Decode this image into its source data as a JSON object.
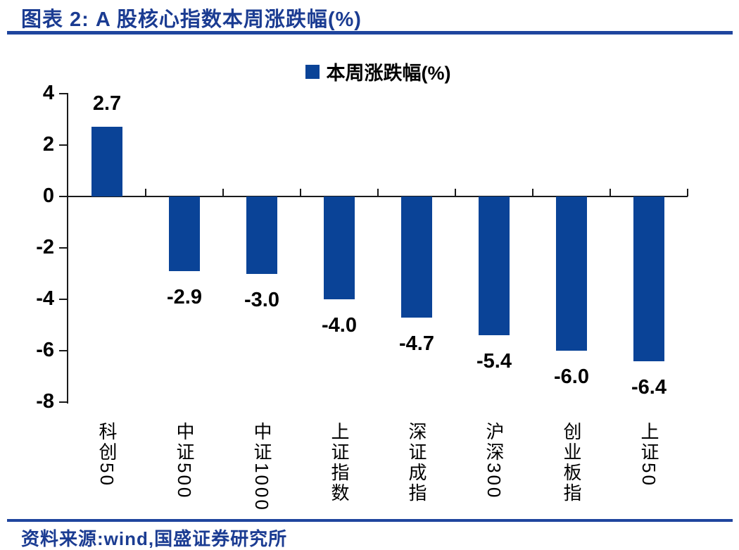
{
  "header": {
    "title": "图表 2: A 股核心指数本周涨跌幅(%)"
  },
  "footer": {
    "source": "资料来源:wind,国盛证券研究所"
  },
  "colors": {
    "bar": "#0A4397",
    "accent_text": "#1B3C92",
    "divider": "#1F459E",
    "axis_line": "#1A1A1A",
    "data_label": "#000000"
  },
  "chart_data": {
    "type": "bar",
    "title": "",
    "xlabel": "",
    "ylabel": "",
    "legend": [
      "本周涨跌幅(%)"
    ],
    "legend_position": "top-center",
    "grid": false,
    "categories": [
      "科创50",
      "中证500",
      "中证1000",
      "上证指数",
      "深证成指",
      "沪深300",
      "创业板指",
      "上证50"
    ],
    "values": [
      2.7,
      -2.9,
      -3.0,
      -4.0,
      -4.7,
      -5.4,
      -6.0,
      -6.4
    ],
    "value_labels": [
      "2.7",
      "-2.9",
      "-3.0",
      "-4.0",
      "-4.7",
      "-5.4",
      "-6.0",
      "-6.4"
    ],
    "ylim": [
      -8,
      4
    ],
    "yticks": [
      4,
      2,
      0,
      -2,
      -4,
      -6,
      -8
    ],
    "bar_color": "#0A4397"
  }
}
